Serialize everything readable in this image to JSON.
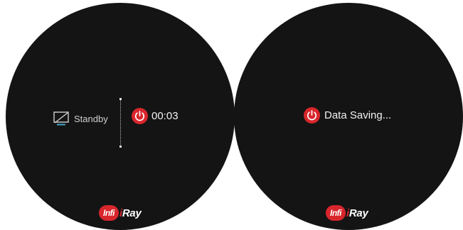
{
  "colors": {
    "screen_background": "#141414",
    "accent_red": "#d8262c",
    "text": "#f2f2f2"
  },
  "left_screen": {
    "standby": {
      "icon": "screen-off-icon",
      "label": "Standby"
    },
    "power_off": {
      "icon": "power-icon",
      "countdown": "00:03"
    },
    "logo": {
      "badge": "Infi",
      "text_i": "i",
      "text_rest": "Ray"
    }
  },
  "right_screen": {
    "saving": {
      "icon": "power-icon",
      "label": "Data Saving..."
    },
    "logo": {
      "badge": "Infi",
      "text_i": "i",
      "text_rest": "Ray"
    }
  }
}
